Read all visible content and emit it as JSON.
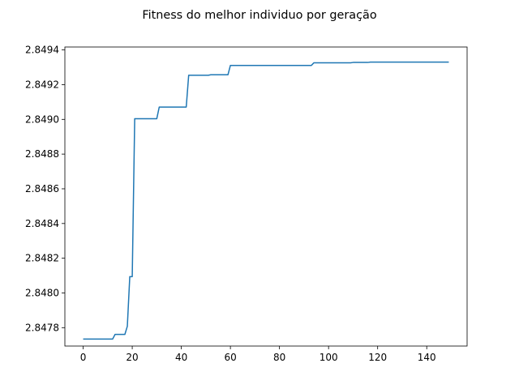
{
  "chart_data": {
    "type": "line",
    "title": "Fitness do melhor individuo por geração",
    "xlabel": "",
    "ylabel": "",
    "xlim": [
      -7.45,
      156.45
    ],
    "ylim": [
      2.847694,
      2.849417
    ],
    "xticks": [
      0,
      20,
      40,
      60,
      80,
      100,
      120,
      140
    ],
    "yticks": [
      2.8478,
      2.848,
      2.8482,
      2.8484,
      2.8486,
      2.8488,
      2.849,
      2.8492,
      2.8494
    ],
    "grid": false,
    "colors": {
      "series": "#1f77b4",
      "axes": "#000000",
      "background": "#ffffff"
    },
    "series": [
      {
        "points": [
          [
            0,
            2.847734
          ],
          [
            12,
            2.847734
          ],
          [
            13,
            2.847761
          ],
          [
            17,
            2.847761
          ],
          [
            18,
            2.847808
          ],
          [
            19,
            2.848094
          ],
          [
            20,
            2.848094
          ],
          [
            21,
            2.849004
          ],
          [
            30,
            2.849004
          ],
          [
            31,
            2.849071
          ],
          [
            42,
            2.849071
          ],
          [
            43,
            2.849254
          ],
          [
            51,
            2.849254
          ],
          [
            52,
            2.849257
          ],
          [
            59,
            2.849257
          ],
          [
            60,
            2.849311
          ],
          [
            93,
            2.849311
          ],
          [
            94,
            2.849326
          ],
          [
            109,
            2.849326
          ],
          [
            110,
            2.849328
          ],
          [
            116,
            2.849328
          ],
          [
            117,
            2.84933
          ],
          [
            149,
            2.84933
          ]
        ]
      }
    ]
  }
}
